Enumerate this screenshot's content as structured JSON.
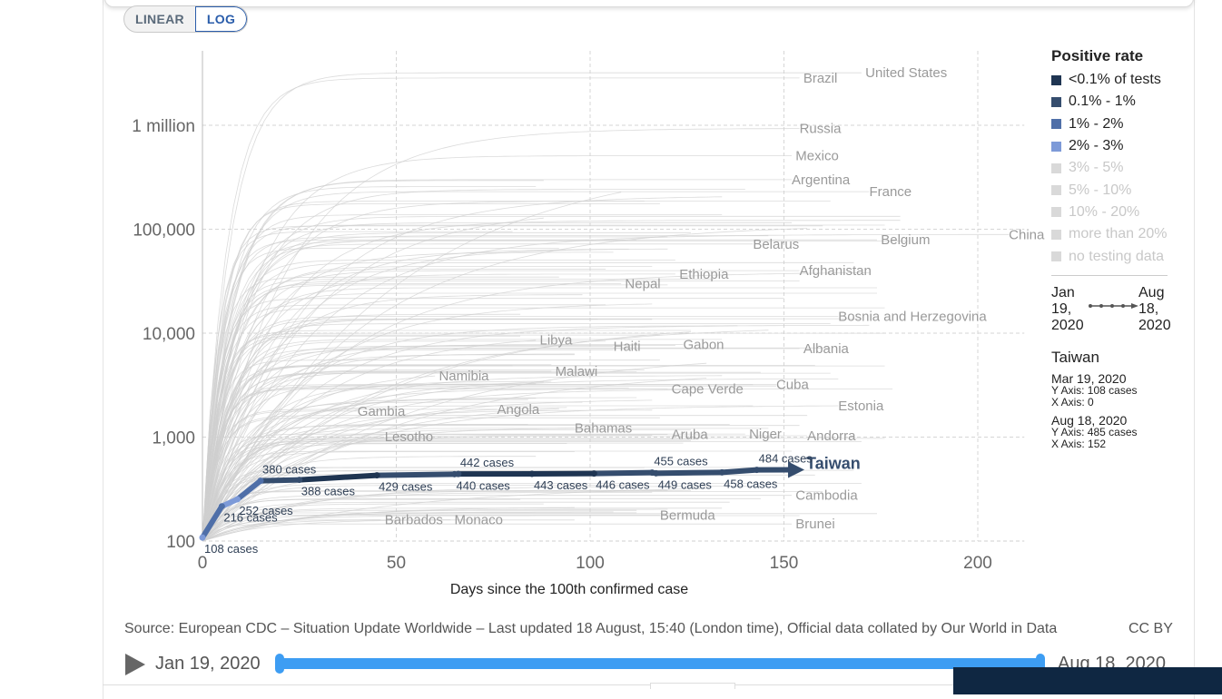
{
  "toggle": {
    "linear": "LINEAR",
    "log": "LOG",
    "active": "LOG"
  },
  "chart_data": {
    "type": "line",
    "title": "",
    "xlabel": "Days since the 100th confirmed case",
    "ylabel": "",
    "y_scale": "log",
    "xlim": [
      0,
      212
    ],
    "ylim": [
      100,
      4500000
    ],
    "x_ticks": [
      "0",
      "50",
      "100",
      "150",
      "200"
    ],
    "x_tick_values": [
      0,
      50,
      100,
      150,
      200
    ],
    "y_ticks": [
      "100",
      "1,000",
      "10,000",
      "100,000",
      "1 million"
    ],
    "y_tick_values": [
      100,
      1000,
      10000,
      100000,
      1000000
    ],
    "grid": "dashed",
    "highlight_series": {
      "name": "Taiwan",
      "color_by": "Positive rate",
      "points": [
        {
          "x": 0,
          "y": 108,
          "label": "108 cases",
          "rate": "2% - 3%"
        },
        {
          "x": 5,
          "y": 216,
          "label": "216 cases",
          "rate": "1% - 2%"
        },
        {
          "x": 9,
          "y": 252,
          "label": "252 cases",
          "rate": "2% - 3%"
        },
        {
          "x": 15,
          "y": 380,
          "label": "380 cases",
          "rate": "1% - 2%"
        },
        {
          "x": 25,
          "y": 388,
          "label": "388 cases",
          "rate": "0.1% - 1%"
        },
        {
          "x": 45,
          "y": 429,
          "label": "429 cases",
          "rate": "<0.1% of tests"
        },
        {
          "x": 65,
          "y": 440,
          "label": "440 cases",
          "rate": "0.1% - 1%"
        },
        {
          "x": 66,
          "y": 442,
          "label": "442 cases",
          "rate": "0.1% - 1%"
        },
        {
          "x": 85,
          "y": 443,
          "label": "443 cases",
          "rate": "<0.1% of tests"
        },
        {
          "x": 101,
          "y": 446,
          "label": "446 cases",
          "rate": "<0.1% of tests"
        },
        {
          "x": 117,
          "y": 449,
          "label": "449 cases",
          "rate": "0.1% - 1%"
        },
        {
          "x": 116,
          "y": 455,
          "label": "455 cases",
          "rate": "0.1% - 1%"
        },
        {
          "x": 134,
          "y": 458,
          "label": "458 cases",
          "rate": "0.1% - 1%"
        },
        {
          "x": 143,
          "y": 484,
          "label": "484 cases",
          "rate": "0.1% - 1%"
        },
        {
          "x": 152,
          "y": 485,
          "label": "",
          "rate": "0.1% - 1%"
        }
      ]
    },
    "background_series_labels": [
      {
        "name": "United States",
        "x": 171,
        "y": 3200000
      },
      {
        "name": "Brazil",
        "x": 155,
        "y": 2850000
      },
      {
        "name": "Russia",
        "x": 154,
        "y": 930000
      },
      {
        "name": "Mexico",
        "x": 153,
        "y": 510000
      },
      {
        "name": "Argentina",
        "x": 152,
        "y": 300000
      },
      {
        "name": "France",
        "x": 172,
        "y": 230000
      },
      {
        "name": "China",
        "x": 208,
        "y": 89000
      },
      {
        "name": "Belgium",
        "x": 175,
        "y": 79000
      },
      {
        "name": "Belarus",
        "x": 142,
        "y": 72000
      },
      {
        "name": "Afghanistan",
        "x": 154,
        "y": 40000
      },
      {
        "name": "Ethiopia",
        "x": 123,
        "y": 37000
      },
      {
        "name": "Nepal",
        "x": 109,
        "y": 30000
      },
      {
        "name": "Bosnia and Herzegovina",
        "x": 164,
        "y": 14500
      },
      {
        "name": "Libya",
        "x": 87,
        "y": 8600
      },
      {
        "name": "Haiti",
        "x": 106,
        "y": 7500
      },
      {
        "name": "Gabon",
        "x": 124,
        "y": 7800
      },
      {
        "name": "Albania",
        "x": 155,
        "y": 7100
      },
      {
        "name": "Namibia",
        "x": 61,
        "y": 3900
      },
      {
        "name": "Malawi",
        "x": 91,
        "y": 4300
      },
      {
        "name": "Cuba",
        "x": 148,
        "y": 3200
      },
      {
        "name": "Cape Verde",
        "x": 121,
        "y": 2900
      },
      {
        "name": "Estonia",
        "x": 164,
        "y": 2000
      },
      {
        "name": "Angola",
        "x": 76,
        "y": 1850
      },
      {
        "name": "Gambia",
        "x": 40,
        "y": 1780
      },
      {
        "name": "Bahamas",
        "x": 96,
        "y": 1220
      },
      {
        "name": "Aruba",
        "x": 121,
        "y": 1060
      },
      {
        "name": "Niger",
        "x": 141,
        "y": 1070
      },
      {
        "name": "Andorra",
        "x": 156,
        "y": 1030
      },
      {
        "name": "Lesotho",
        "x": 47,
        "y": 1010
      },
      {
        "name": "Cambodia",
        "x": 153,
        "y": 275
      },
      {
        "name": "Bermuda",
        "x": 118,
        "y": 178
      },
      {
        "name": "Barbados",
        "x": 47,
        "y": 160
      },
      {
        "name": "Monaco",
        "x": 65,
        "y": 160
      },
      {
        "name": "Brunei",
        "x": 153,
        "y": 146
      }
    ]
  },
  "legend": {
    "title": "Positive rate",
    "items": [
      {
        "label": "<0.1% of tests",
        "color": "#1f3552",
        "dim": false
      },
      {
        "label": "0.1% - 1%",
        "color": "#354d6e",
        "dim": false
      },
      {
        "label": "1% - 2%",
        "color": "#4f6fa8",
        "dim": false
      },
      {
        "label": "2% - 3%",
        "color": "#7d9ad8",
        "dim": false
      },
      {
        "label": "3% - 5%",
        "color": "#d9d9d9",
        "dim": true
      },
      {
        "label": "5% - 10%",
        "color": "#d9d9d9",
        "dim": true
      },
      {
        "label": "10% - 20%",
        "color": "#d9d9d9",
        "dim": true
      },
      {
        "label": "more than 20%",
        "color": "#d9d9d9",
        "dim": true
      },
      {
        "label": "no testing data",
        "color": "#d9d9d9",
        "dim": true
      }
    ],
    "time_start": [
      "Jan",
      "19,",
      "2020"
    ],
    "time_end": [
      "Aug",
      "18,",
      "2020"
    ],
    "country": "Taiwan",
    "start_date": "Mar 19, 2020",
    "start_y": "Y Axis: 108 cases",
    "start_x": "X Axis: 0",
    "end_date": "Aug 18, 2020",
    "end_y": "Y Axis: 485 cases",
    "end_x": "X Axis: 152"
  },
  "footer": {
    "source": "Source: European CDC – Situation Update Worldwide – Last updated 18 August, 15:40 (London time), Official data collated by Our World in Data",
    "license": "CC BY"
  },
  "timeline": {
    "start": "Jan 19, 2020",
    "end": "Aug 18, 2020"
  }
}
